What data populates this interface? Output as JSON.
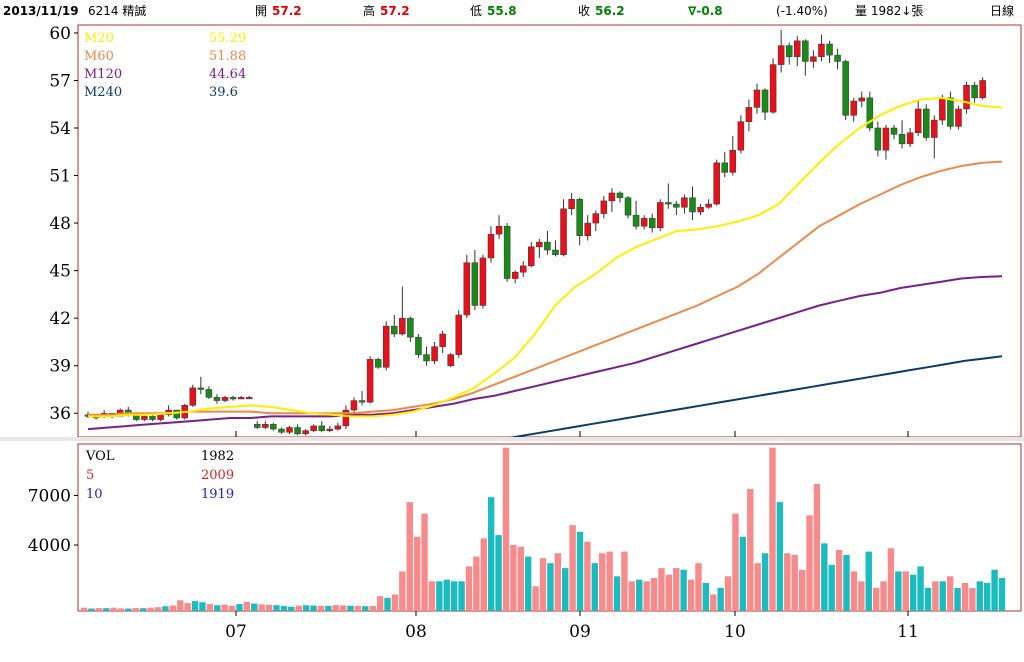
{
  "header": {
    "date": "2013/11/19",
    "stock": "6214 精誠",
    "open_label": "開",
    "open": "57.2",
    "high_label": "高",
    "high": "57.2",
    "low_label": "低",
    "low": "55.8",
    "close_label": "收",
    "close": "56.2",
    "change": "∇-0.8",
    "change_pct": "(-1.40%)",
    "volume_text": "量 1982↓張",
    "period": "日線"
  },
  "colors": {
    "up": "#e8101a",
    "down": "#1a8a1a",
    "ma20": "#ffee00",
    "ma60": "#f0884a",
    "ma120": "#7a1e8c",
    "ma240": "#0a3a6a",
    "vol_up": "#f78a8a",
    "vol_down": "#1bbcc0",
    "vol_ma5": "#e02020",
    "vol_ma10": "#2020c0"
  },
  "chart_data": [
    {
      "type": "line",
      "title": "",
      "y_ticks": [
        36,
        39,
        42,
        45,
        48,
        51,
        54,
        57,
        60
      ],
      "ylim": [
        34.5,
        60.5
      ],
      "x_month_labels": [
        "07",
        "08",
        "09",
        "10",
        "11"
      ],
      "legend": [
        {
          "name": "M20",
          "value": "55.29"
        },
        {
          "name": "M60",
          "value": "51.88"
        },
        {
          "name": "M120",
          "value": "44.64"
        },
        {
          "name": "M240",
          "value": "39.6"
        }
      ],
      "series": [
        {
          "name": "M20",
          "values": [
            35.8,
            35.8,
            35.9,
            35.9,
            36.0,
            36.1,
            36.3,
            36.4,
            36.5,
            36.4,
            36.2,
            36.0,
            35.9,
            35.8,
            35.8,
            35.9,
            36.1,
            36.5,
            37.0,
            37.6,
            38.5,
            39.5,
            41.0,
            42.8,
            44.0,
            44.8,
            45.8,
            46.5,
            47.0,
            47.5,
            47.6,
            47.8,
            48.1,
            48.5,
            49.2,
            50.5,
            51.8,
            53.0,
            54.0,
            54.8,
            55.4,
            55.8,
            55.9,
            55.7,
            55.4,
            55.29
          ]
        },
        {
          "name": "M60",
          "values": [
            35.9,
            35.9,
            36.0,
            36.0,
            36.0,
            36.1,
            36.1,
            36.1,
            36.1,
            36.0,
            36.0,
            36.0,
            36.0,
            36.0,
            36.1,
            36.2,
            36.4,
            36.6,
            36.9,
            37.3,
            37.8,
            38.3,
            38.8,
            39.3,
            39.8,
            40.3,
            40.8,
            41.3,
            41.8,
            42.3,
            42.8,
            43.4,
            44.0,
            44.8,
            45.8,
            46.8,
            47.8,
            48.5,
            49.2,
            49.8,
            50.4,
            50.9,
            51.3,
            51.6,
            51.8,
            51.88
          ]
        },
        {
          "name": "M120",
          "values": [
            35.0,
            35.1,
            35.2,
            35.3,
            35.4,
            35.5,
            35.6,
            35.7,
            35.7,
            35.8,
            35.8,
            35.8,
            35.8,
            35.9,
            35.9,
            36.0,
            36.2,
            36.4,
            36.6,
            36.9,
            37.1,
            37.4,
            37.7,
            38.0,
            38.3,
            38.6,
            38.9,
            39.2,
            39.6,
            40.0,
            40.4,
            40.8,
            41.2,
            41.6,
            42.0,
            42.4,
            42.8,
            43.1,
            43.4,
            43.6,
            43.9,
            44.1,
            44.3,
            44.5,
            44.6,
            44.64
          ]
        }
      ],
      "note_ma240": {
        "name": "M240",
        "values": [
          34.0,
          34.1,
          34.2,
          34.3,
          34.5,
          34.7,
          34.9,
          35.1,
          35.3,
          35.5,
          35.7,
          35.9,
          36.1,
          36.3,
          36.5,
          36.7,
          36.9,
          37.1,
          37.3,
          37.5,
          37.7,
          37.9,
          38.1,
          38.3,
          38.5,
          38.7,
          38.9,
          39.1,
          39.3,
          39.45,
          39.6
        ]
      }
    },
    {
      "type": "bar",
      "title": "",
      "y_ticks": [
        4000,
        7000
      ],
      "ylim": [
        0,
        10000
      ],
      "legend": [
        {
          "name": "VOL",
          "value": "1982"
        },
        {
          "name": "5",
          "value": "2009"
        },
        {
          "name": "10",
          "value": "1919"
        }
      ],
      "values": [
        200,
        150,
        180,
        170,
        200,
        160,
        150,
        180,
        170,
        200,
        230,
        290,
        330,
        650,
        480,
        600,
        530,
        420,
        350,
        380,
        320,
        420,
        550,
        450,
        400,
        380,
        350,
        300,
        260,
        320,
        350,
        330,
        310,
        310,
        360,
        340,
        320,
        310,
        290,
        300,
        900,
        800,
        1000,
        2400,
        6600,
        4500,
        5900,
        1800,
        1800,
        1900,
        1800,
        1800,
        2700,
        3300,
        4400,
        6900,
        4600,
        9900,
        4000,
        3900,
        3300,
        1500,
        3200,
        2900,
        3500,
        2600,
        5200,
        4800,
        4200,
        2900,
        3500,
        3600,
        2100,
        3600,
        1800,
        1900,
        1800,
        2000,
        2600,
        2200,
        2600,
        2500,
        1900,
        2900,
        1700,
        1000,
        1400,
        2100,
        5900,
        4500,
        7400,
        2900,
        3500,
        9900,
        6600,
        3500,
        3400,
        2500,
        5800,
        7700,
        4100,
        2800,
        3700,
        3400,
        2400,
        1800,
        3600,
        1400,
        1800,
        3800,
        2400,
        2400,
        2200,
        2700,
        1400,
        1800,
        1800,
        2100,
        1400,
        1700,
        1400,
        1800,
        1700,
        2500,
        2000
      ],
      "up_flags": [
        1,
        0,
        1,
        0,
        1,
        1,
        0,
        1,
        0,
        1,
        1,
        0,
        1,
        1,
        1,
        0,
        0,
        1,
        0,
        1,
        1,
        0,
        1,
        0,
        1,
        1,
        0,
        0,
        0,
        1,
        0,
        0,
        1,
        0,
        1,
        1,
        0,
        1,
        0,
        1,
        1,
        0,
        1,
        1,
        1,
        1,
        1,
        1,
        0,
        0,
        0,
        0,
        1,
        1,
        1,
        0,
        0,
        1,
        1,
        1,
        0,
        1,
        1,
        0,
        1,
        0,
        1,
        0,
        1,
        0,
        1,
        1,
        0,
        1,
        1,
        0,
        1,
        1,
        1,
        1,
        1,
        0,
        1,
        1,
        0,
        1,
        0,
        1,
        1,
        0,
        1,
        1,
        0,
        1,
        0,
        1,
        1,
        1,
        1,
        1,
        0,
        0,
        1,
        0,
        1,
        1,
        0,
        1,
        1,
        1,
        0,
        1,
        0,
        0,
        0,
        1,
        0,
        1,
        0,
        1,
        1,
        0
      ]
    }
  ],
  "candles": [
    [
      35.9,
      36.1,
      35.7,
      35.8
    ],
    [
      35.8,
      35.9,
      35.6,
      35.8
    ],
    [
      35.8,
      36.2,
      35.7,
      36.0
    ],
    [
      36.0,
      36.0,
      35.7,
      35.8
    ],
    [
      35.8,
      36.3,
      35.8,
      36.2
    ],
    [
      36.2,
      36.4,
      35.8,
      35.9
    ],
    [
      35.9,
      36.0,
      35.5,
      35.6
    ],
    [
      35.6,
      35.9,
      35.5,
      35.8
    ],
    [
      35.8,
      35.9,
      35.5,
      35.6
    ],
    [
      35.6,
      36.0,
      35.5,
      35.9
    ],
    [
      35.9,
      36.5,
      35.8,
      36.2
    ],
    [
      36.2,
      36.2,
      35.6,
      35.7
    ],
    [
      35.7,
      36.6,
      35.6,
      36.5
    ],
    [
      36.5,
      37.8,
      36.4,
      37.6
    ],
    [
      37.6,
      38.3,
      37.2,
      37.5
    ],
    [
      37.5,
      37.7,
      36.9,
      37.0
    ],
    [
      37.0,
      37.2,
      36.6,
      36.8
    ],
    [
      36.8,
      37.1,
      36.7,
      37.0
    ],
    [
      37.0,
      37.1,
      36.8,
      36.9
    ],
    [
      36.9,
      37.1,
      36.9,
      37.0
    ],
    [
      37.0,
      37.1,
      36.9,
      37.0
    ],
    [
      35.3,
      35.5,
      35.0,
      35.1
    ],
    [
      35.1,
      35.5,
      35.0,
      35.3
    ],
    [
      35.3,
      35.4,
      34.9,
      35.0
    ],
    [
      35.0,
      35.1,
      34.7,
      34.8
    ],
    [
      34.8,
      35.2,
      34.7,
      35.1
    ],
    [
      35.1,
      35.3,
      34.6,
      34.7
    ],
    [
      34.7,
      35.0,
      34.6,
      34.9
    ],
    [
      34.9,
      35.3,
      34.8,
      35.2
    ],
    [
      35.2,
      35.5,
      34.8,
      34.9
    ],
    [
      34.9,
      35.2,
      34.8,
      35.0
    ],
    [
      35.0,
      35.4,
      34.9,
      35.2
    ],
    [
      35.2,
      36.5,
      35.0,
      36.2
    ],
    [
      36.2,
      37.0,
      36.0,
      36.8
    ],
    [
      36.8,
      37.4,
      36.5,
      36.7
    ],
    [
      36.7,
      39.6,
      36.6,
      39.4
    ],
    [
      39.4,
      39.5,
      38.8,
      38.9
    ],
    [
      38.9,
      41.8,
      38.7,
      41.5
    ],
    [
      41.5,
      42.2,
      40.8,
      41.0
    ],
    [
      41.0,
      44.0,
      40.9,
      42.0
    ],
    [
      42.0,
      42.1,
      40.5,
      40.8
    ],
    [
      40.8,
      41.0,
      39.5,
      39.7
    ],
    [
      39.7,
      40.2,
      39.0,
      39.3
    ],
    [
      39.3,
      40.5,
      39.1,
      40.2
    ],
    [
      40.2,
      41.2,
      39.8,
      41.0
    ],
    [
      39.0,
      39.8,
      38.9,
      39.7
    ],
    [
      39.7,
      42.5,
      39.5,
      42.2
    ],
    [
      42.2,
      46.0,
      42.0,
      45.5
    ],
    [
      45.5,
      46.3,
      42.5,
      42.8
    ],
    [
      42.8,
      46.0,
      42.6,
      45.8
    ],
    [
      45.8,
      47.8,
      45.5,
      47.3
    ],
    [
      47.3,
      48.5,
      47.0,
      47.8
    ],
    [
      47.8,
      48.0,
      44.3,
      44.5
    ],
    [
      44.5,
      45.0,
      44.2,
      44.9
    ],
    [
      44.9,
      45.6,
      44.6,
      45.3
    ],
    [
      45.3,
      46.8,
      45.2,
      46.5
    ],
    [
      46.5,
      47.0,
      45.8,
      46.8
    ],
    [
      46.8,
      47.5,
      46.0,
      46.3
    ],
    [
      46.3,
      46.9,
      45.9,
      46.0
    ],
    [
      46.0,
      49.5,
      45.9,
      48.9
    ],
    [
      48.9,
      49.9,
      48.5,
      49.5
    ],
    [
      49.5,
      49.6,
      46.6,
      47.2
    ],
    [
      47.2,
      48.5,
      46.9,
      48.0
    ],
    [
      48.0,
      48.8,
      47.5,
      48.6
    ],
    [
      48.6,
      49.7,
      48.3,
      49.4
    ],
    [
      49.4,
      50.2,
      48.7,
      49.9
    ],
    [
      49.9,
      50.0,
      49.3,
      49.6
    ],
    [
      49.6,
      49.7,
      48.3,
      48.5
    ],
    [
      48.5,
      49.4,
      47.6,
      47.8
    ],
    [
      47.8,
      48.5,
      47.6,
      48.3
    ],
    [
      48.3,
      48.6,
      47.4,
      47.7
    ],
    [
      47.7,
      49.5,
      47.5,
      49.3
    ],
    [
      49.3,
      50.5,
      48.9,
      49.2
    ],
    [
      49.2,
      49.4,
      48.5,
      49.0
    ],
    [
      49.0,
      49.8,
      48.6,
      49.6
    ],
    [
      49.6,
      50.3,
      48.2,
      48.7
    ],
    [
      48.7,
      49.2,
      48.5,
      49.0
    ],
    [
      49.0,
      49.5,
      48.9,
      49.2
    ],
    [
      49.2,
      52.0,
      49.1,
      51.8
    ],
    [
      51.8,
      52.5,
      50.9,
      51.2
    ],
    [
      51.2,
      53.5,
      51.0,
      52.6
    ],
    [
      52.6,
      54.8,
      52.4,
      54.4
    ],
    [
      54.4,
      55.8,
      53.8,
      55.3
    ],
    [
      55.3,
      56.8,
      54.9,
      56.4
    ],
    [
      56.4,
      56.5,
      54.5,
      55.0
    ],
    [
      55.0,
      58.4,
      54.9,
      58.0
    ],
    [
      58.0,
      60.2,
      57.5,
      59.2
    ],
    [
      59.2,
      59.4,
      58.0,
      58.5
    ],
    [
      58.5,
      59.8,
      57.9,
      59.5
    ],
    [
      59.5,
      59.6,
      57.3,
      58.2
    ],
    [
      58.2,
      58.9,
      57.8,
      58.5
    ],
    [
      58.5,
      59.9,
      58.2,
      59.3
    ],
    [
      59.3,
      59.5,
      58.1,
      58.6
    ],
    [
      58.6,
      59.0,
      57.7,
      58.2
    ],
    [
      58.2,
      58.3,
      54.5,
      54.8
    ],
    [
      54.8,
      55.9,
      54.4,
      55.7
    ],
    [
      55.7,
      56.3,
      55.3,
      55.9
    ],
    [
      55.9,
      56.3,
      53.8,
      54.0
    ],
    [
      54.0,
      54.4,
      52.2,
      52.6
    ],
    [
      52.6,
      54.2,
      52.0,
      54.0
    ],
    [
      54.0,
      54.2,
      53.3,
      53.6
    ],
    [
      53.6,
      54.5,
      52.7,
      53.0
    ],
    [
      53.0,
      54.0,
      52.8,
      53.7
    ],
    [
      53.7,
      55.8,
      53.5,
      55.2
    ],
    [
      55.2,
      55.5,
      53.2,
      53.4
    ],
    [
      53.4,
      54.8,
      52.1,
      54.5
    ],
    [
      54.5,
      56.1,
      54.2,
      55.9
    ],
    [
      55.9,
      56.3,
      53.9,
      54.1
    ],
    [
      54.1,
      55.4,
      53.9,
      55.2
    ],
    [
      55.2,
      56.9,
      54.9,
      56.7
    ],
    [
      56.7,
      56.9,
      55.6,
      55.9
    ],
    [
      55.9,
      57.2,
      55.8,
      57.0
    ]
  ]
}
